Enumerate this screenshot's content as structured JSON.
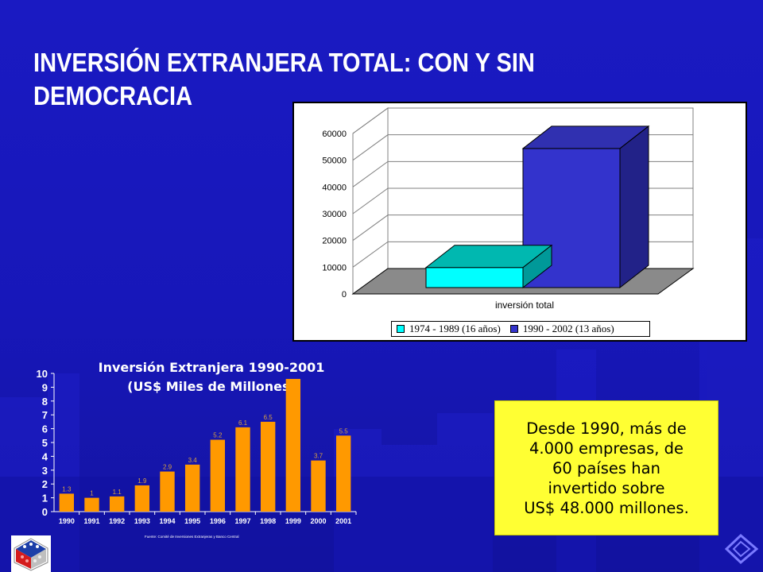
{
  "slide": {
    "title_line1": "INVERSIÓN EXTRANJERA TOTAL: CON Y SIN",
    "title_line2": "DEMOCRACIA"
  },
  "chart_3d": {
    "type": "bar",
    "categories": [
      "inversión total"
    ],
    "series": [
      {
        "name": "1974 - 1989 (16 años)",
        "values": [
          7500
        ],
        "color": "#00ffff"
      },
      {
        "name": "1990 - 2002 (13 años)",
        "values": [
          52000
        ],
        "color": "#3333cc"
      }
    ],
    "yticks": [
      "0",
      "10000",
      "20000",
      "30000",
      "40000",
      "50000",
      "60000"
    ],
    "ylim": [
      0,
      60000
    ],
    "xlabel": "inversión total",
    "legend_position": "bottom"
  },
  "chart_data": {
    "type": "bar",
    "title": "Inversión Extranjera 1990-2001",
    "subtitle": "(US$ Miles de Millones)",
    "categories": [
      "1990",
      "1991",
      "1992",
      "1993",
      "1994",
      "1995",
      "1996",
      "1997",
      "1998",
      "1999",
      "2000",
      "2001"
    ],
    "values": [
      1.3,
      1,
      1.1,
      1.9,
      2.9,
      3.4,
      5.2,
      6.1,
      6.5,
      9.6,
      3.7,
      5.5
    ],
    "value_labels": [
      "1.3",
      "1",
      "1.1",
      "1.9",
      "2.9",
      "3.4",
      "5.2",
      "6.1",
      "6.5",
      "",
      "3.7",
      "5.5"
    ],
    "yticks": [
      "0",
      "1",
      "2",
      "3",
      "4",
      "5",
      "6",
      "7",
      "8",
      "9",
      "10"
    ],
    "ylim": [
      0,
      10
    ],
    "bar_color": "#ff9900",
    "source": "Fuente: Comité de Inversiones Extranjeras y Banco Central"
  },
  "info_box": {
    "line1": "Desde 1990, más de",
    "line2": "4.000 empresas, de",
    "line3": "60 países han",
    "line4": "invertido sobre",
    "line5": "US$ 48.000 millones."
  },
  "colors": {
    "background": "#1717b9",
    "title": "#ffffff",
    "info_box": "#ffff33"
  },
  "icons": {
    "logo": "chile-logo-icon",
    "corner": "navigation-arrow-icon"
  }
}
